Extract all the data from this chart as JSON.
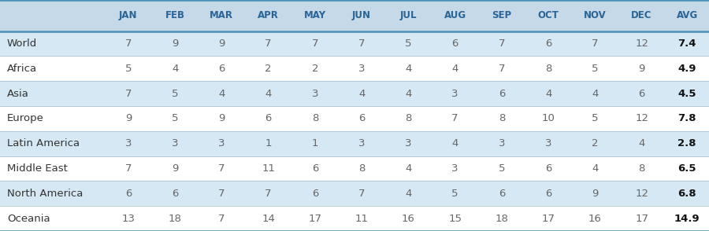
{
  "columns": [
    "JAN",
    "FEB",
    "MAR",
    "APR",
    "MAY",
    "JUN",
    "JUL",
    "AUG",
    "SEP",
    "OCT",
    "NOV",
    "DEC",
    "AVG"
  ],
  "rows": [
    {
      "region": "World",
      "values": [
        7,
        9,
        9,
        7,
        7,
        7,
        5,
        6,
        7,
        6,
        7,
        12
      ],
      "avg": "7.4",
      "shaded": true
    },
    {
      "region": "Africa",
      "values": [
        5,
        4,
        6,
        2,
        2,
        3,
        4,
        4,
        7,
        8,
        5,
        9
      ],
      "avg": "4.9",
      "shaded": false
    },
    {
      "region": "Asia",
      "values": [
        7,
        5,
        4,
        4,
        3,
        4,
        4,
        3,
        6,
        4,
        4,
        6
      ],
      "avg": "4.5",
      "shaded": true
    },
    {
      "region": "Europe",
      "values": [
        9,
        5,
        9,
        6,
        8,
        6,
        8,
        7,
        8,
        10,
        5,
        12
      ],
      "avg": "7.8",
      "shaded": false
    },
    {
      "region": "Latin America",
      "values": [
        3,
        3,
        3,
        1,
        1,
        3,
        3,
        4,
        3,
        3,
        2,
        4
      ],
      "avg": "2.8",
      "shaded": true
    },
    {
      "region": "Middle East",
      "values": [
        7,
        9,
        7,
        11,
        6,
        8,
        4,
        3,
        5,
        6,
        4,
        8
      ],
      "avg": "6.5",
      "shaded": false
    },
    {
      "region": "North America",
      "values": [
        6,
        6,
        7,
        7,
        6,
        7,
        4,
        5,
        6,
        6,
        9,
        12
      ],
      "avg": "6.8",
      "shaded": true
    },
    {
      "region": "Oceania",
      "values": [
        13,
        18,
        7,
        14,
        17,
        11,
        16,
        15,
        18,
        17,
        16,
        17
      ],
      "avg": "14.9",
      "shaded": false
    }
  ],
  "header_bg": "#c5d9e8",
  "row_bg_shaded": "#d6e8f4",
  "row_bg_white": "#ffffff",
  "header_text_color": "#2a6496",
  "data_text_color": "#666666",
  "avg_text_color": "#111111",
  "region_text_color": "#333333",
  "strong_border_color": "#4a90b8",
  "light_border_color": "#b0c8d8",
  "header_fontsize": 8.5,
  "data_fontsize": 9.5,
  "region_fontsize": 9.5,
  "avg_fontsize": 9.5,
  "fig_width": 9.0,
  "fig_height": 2.94,
  "dpi": 100
}
